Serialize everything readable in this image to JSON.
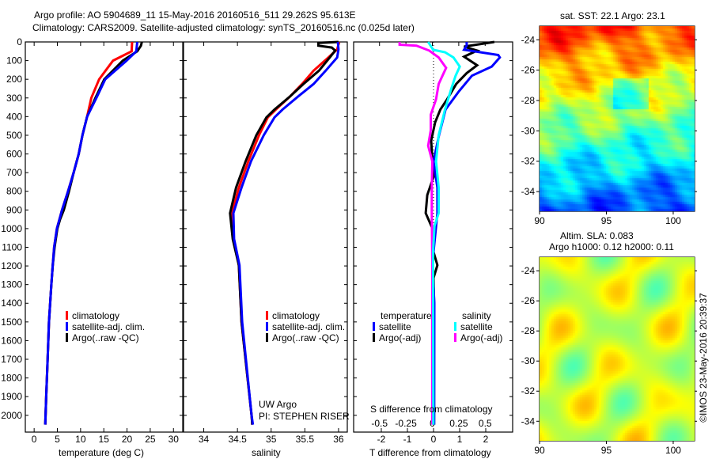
{
  "title": {
    "line1": "Argo profile: AO 5904689_11 15-May-2016 20160516_511 29.262S 95.613E",
    "line2": "Climatology: CARS2009. Satellite-adjusted climatology: synTS_20160516.nc (0.025d later)"
  },
  "colors": {
    "climatology": "#ff0000",
    "satellite": "#0000ff",
    "argo": "#000000",
    "sal_satellite": "#00ffff",
    "sal_argo": "#ff00ff"
  },
  "legend_profiles": {
    "climatology": "climatology",
    "satellite": "satellite-adj. clim.",
    "argo": "Argo(..raw -QC)"
  },
  "legend_diff": {
    "temp_title": "temperature",
    "sal_title": "salinity",
    "satellite": "satellite",
    "argo": "Argo(-adj)"
  },
  "pi_info": {
    "line1": "UW Argo",
    "line2": "PI: STEPHEN RISER"
  },
  "timestamp": "©IMOS 23-May-2016 20:39:37",
  "chart_data": [
    {
      "type": "line",
      "name": "temperature",
      "xlabel": "temperature (deg C)",
      "ylabel": "",
      "xticks": [
        0,
        5,
        10,
        15,
        20,
        25,
        30
      ],
      "yticks": [
        0,
        100,
        200,
        300,
        400,
        500,
        600,
        700,
        800,
        900,
        1000,
        1100,
        1200,
        1300,
        1400,
        1500,
        1600,
        1700,
        1800,
        1900,
        2000
      ],
      "xlim": [
        -1.9,
        32
      ],
      "ylim": [
        2090,
        0
      ],
      "series": [
        {
          "name": "climatology",
          "color": "#ff0000",
          "depth": [
            0,
            50,
            100,
            200,
            300,
            400,
            500,
            600,
            700,
            800,
            900,
            1000,
            1100,
            1200,
            1300,
            1500,
            1700,
            1900,
            2050
          ],
          "values": [
            21.1,
            21.0,
            17.0,
            14.0,
            12.3,
            11.4,
            10.4,
            9.6,
            8.5,
            7.3,
            6.0,
            4.9,
            4.3,
            4.0,
            3.7,
            3.2,
            2.9,
            2.6,
            2.4
          ]
        },
        {
          "name": "Argo(..raw -QC)",
          "color": "#000000",
          "depth": [
            0,
            20,
            50,
            100,
            200,
            300,
            400,
            500,
            600,
            700,
            800,
            900,
            950,
            1000,
            1100,
            1200,
            1300,
            1500,
            1700,
            1900,
            2050
          ],
          "values": [
            23.2,
            23.0,
            22.2,
            19.1,
            15.1,
            13.2,
            11.4,
            10.4,
            9.6,
            8.5,
            7.5,
            6.4,
            5.6,
            5.0,
            4.4,
            4.0,
            3.7,
            3.2,
            2.9,
            2.6,
            2.4
          ]
        },
        {
          "name": "satellite-adj. clim.",
          "color": "#0000ff",
          "depth": [
            0,
            50,
            100,
            200,
            300,
            400,
            500,
            600,
            700,
            800,
            900,
            1000,
            1100,
            1200,
            1300,
            1500,
            1700,
            1900,
            2050
          ],
          "values": [
            22.2,
            22.0,
            19.9,
            15.3,
            13.4,
            11.4,
            10.4,
            9.6,
            8.5,
            7.3,
            6.0,
            4.9,
            4.3,
            4.0,
            3.7,
            3.2,
            2.9,
            2.6,
            2.4
          ]
        }
      ]
    },
    {
      "type": "line",
      "name": "salinity",
      "xlabel": "salinity",
      "xticks": [
        34,
        34.5,
        35,
        35.5,
        36
      ],
      "xlim": [
        33.7,
        36.13
      ],
      "ylim": [
        2090,
        0
      ],
      "series": [
        {
          "name": "climatology",
          "color": "#ff0000",
          "depth": [
            0,
            40,
            83,
            154,
            225,
            292,
            362,
            404,
            500,
            640,
            780,
            917,
            1056,
            1196,
            1500,
            2000,
            2050
          ],
          "values": [
            36.01,
            35.98,
            35.85,
            35.63,
            35.46,
            35.28,
            35.07,
            34.95,
            34.82,
            34.66,
            34.52,
            34.42,
            34.44,
            34.52,
            34.56,
            34.71,
            34.72
          ]
        },
        {
          "name": "Argo(..raw -QC)",
          "color": "#000000",
          "depth": [
            0,
            5,
            20,
            30,
            46,
            83,
            154,
            225,
            292,
            362,
            404,
            500,
            640,
            780,
            917,
            1056,
            1196,
            1500,
            2000,
            2050
          ],
          "values": [
            36.0,
            35.7,
            35.7,
            35.9,
            35.95,
            35.87,
            35.71,
            35.48,
            35.28,
            35.05,
            34.93,
            34.78,
            34.62,
            34.48,
            34.39,
            34.43,
            34.52,
            34.56,
            34.71,
            34.72
          ]
        },
        {
          "name": "satellite-adj. clim.",
          "color": "#0000ff",
          "depth": [
            0,
            40,
            83,
            154,
            225,
            292,
            362,
            404,
            500,
            640,
            780,
            917,
            1056,
            1196,
            1500,
            2000,
            2050
          ],
          "values": [
            35.99,
            36.0,
            35.98,
            35.81,
            35.63,
            35.4,
            35.17,
            35.05,
            34.89,
            34.7,
            34.56,
            34.44,
            34.45,
            34.53,
            34.57,
            34.71,
            34.73
          ]
        }
      ]
    },
    {
      "type": "line",
      "name": "difference",
      "xlabel": "T difference from climatology",
      "x2label": "S difference from climatology",
      "xticks": [
        -2,
        -1,
        0,
        1,
        2
      ],
      "x2ticks": [
        -0.5,
        -0.25,
        0,
        0.25,
        0.5
      ],
      "xticklabels": [
        "-2",
        "-1",
        "0",
        "1",
        "2"
      ],
      "x2ticklabels": [
        "-0.5",
        "-0.25",
        "0",
        "0.25",
        "0.5"
      ],
      "xlim": [
        -3.06,
        3.03
      ],
      "x2lim": [
        -0.745,
        0.76
      ],
      "ylim": [
        2090,
        0
      ],
      "series": [
        {
          "name": "T Argo(-adj)",
          "axis": "T",
          "color": "#000000",
          "depth": [
            0,
            25,
            46,
            79,
            125,
            167,
            225,
            307,
            362,
            431,
            529,
            640,
            723,
            820,
            917,
            1000,
            1125,
            1196,
            1264,
            1400,
            2050
          ],
          "values": [
            2.33,
            1.17,
            1.67,
            1.17,
            1.67,
            1.27,
            0.87,
            0.52,
            0.26,
            0.06,
            -0.09,
            -0.04,
            0.0,
            -0.24,
            -0.3,
            -0.04,
            0.0,
            0.15,
            0.0,
            0.02,
            0.02
          ]
        },
        {
          "name": "T satellite",
          "axis": "T",
          "color": "#0000ff",
          "depth": [
            0,
            20,
            42,
            70,
            83,
            132,
            181,
            265,
            362,
            500,
            640,
            780,
            917,
            1125,
            1196,
            1400,
            2050
          ],
          "values": [
            1.27,
            1.27,
            1.17,
            2.48,
            2.54,
            2.23,
            1.47,
            0.97,
            0.46,
            0.21,
            0.0,
            0.15,
            0.15,
            0.0,
            -0.04,
            0.03,
            0.02
          ]
        },
        {
          "name": "S Argo(-adj)",
          "axis": "S",
          "color": "#ff00ff",
          "depth": [
            0,
            15,
            20,
            46,
            83,
            139,
            225,
            307,
            390,
            473,
            556,
            640,
            780,
            917,
            1200,
            2050
          ],
          "values": [
            -0.31,
            -0.31,
            -0.15,
            -0.03,
            0.06,
            0.13,
            0.06,
            0.035,
            -0.015,
            -0.015,
            -0.04,
            0.0,
            -0.005,
            -0.005,
            0.0,
            0.0
          ]
        },
        {
          "name": "S satellite",
          "axis": "S",
          "color": "#00ffff",
          "depth": [
            0,
            35,
            42,
            55,
            83,
            132,
            181,
            250,
            362,
            500,
            640,
            780,
            917,
            986,
            1125,
            2050
          ],
          "values": [
            -0.04,
            0.0,
            0.007,
            0.12,
            0.2,
            0.26,
            0.22,
            0.18,
            0.12,
            0.06,
            0.035,
            0.06,
            0.06,
            0.02,
            0.007,
            0.01
          ]
        }
      ]
    },
    {
      "type": "heatmap",
      "name": "sst-map",
      "title": "sat. SST: 22.1 Argo: 23.1",
      "xticks": [
        90,
        95,
        100
      ],
      "yticks": [
        -24,
        -26,
        -28,
        -30,
        -32,
        -34
      ],
      "xlim": [
        90,
        101.6
      ],
      "ylim": [
        -35.3,
        -23.1
      ]
    },
    {
      "type": "heatmap",
      "name": "sla-map",
      "title": "Altim. SLA: 0.083",
      "subtitle": "Argo h1000: 0.12 h2000: 0.11",
      "xticks": [
        90,
        95,
        100
      ],
      "yticks": [
        -24,
        -26,
        -28,
        -30,
        -32,
        -34
      ],
      "xlim": [
        90,
        101.6
      ],
      "ylim": [
        -35.3,
        -23.1
      ]
    }
  ]
}
